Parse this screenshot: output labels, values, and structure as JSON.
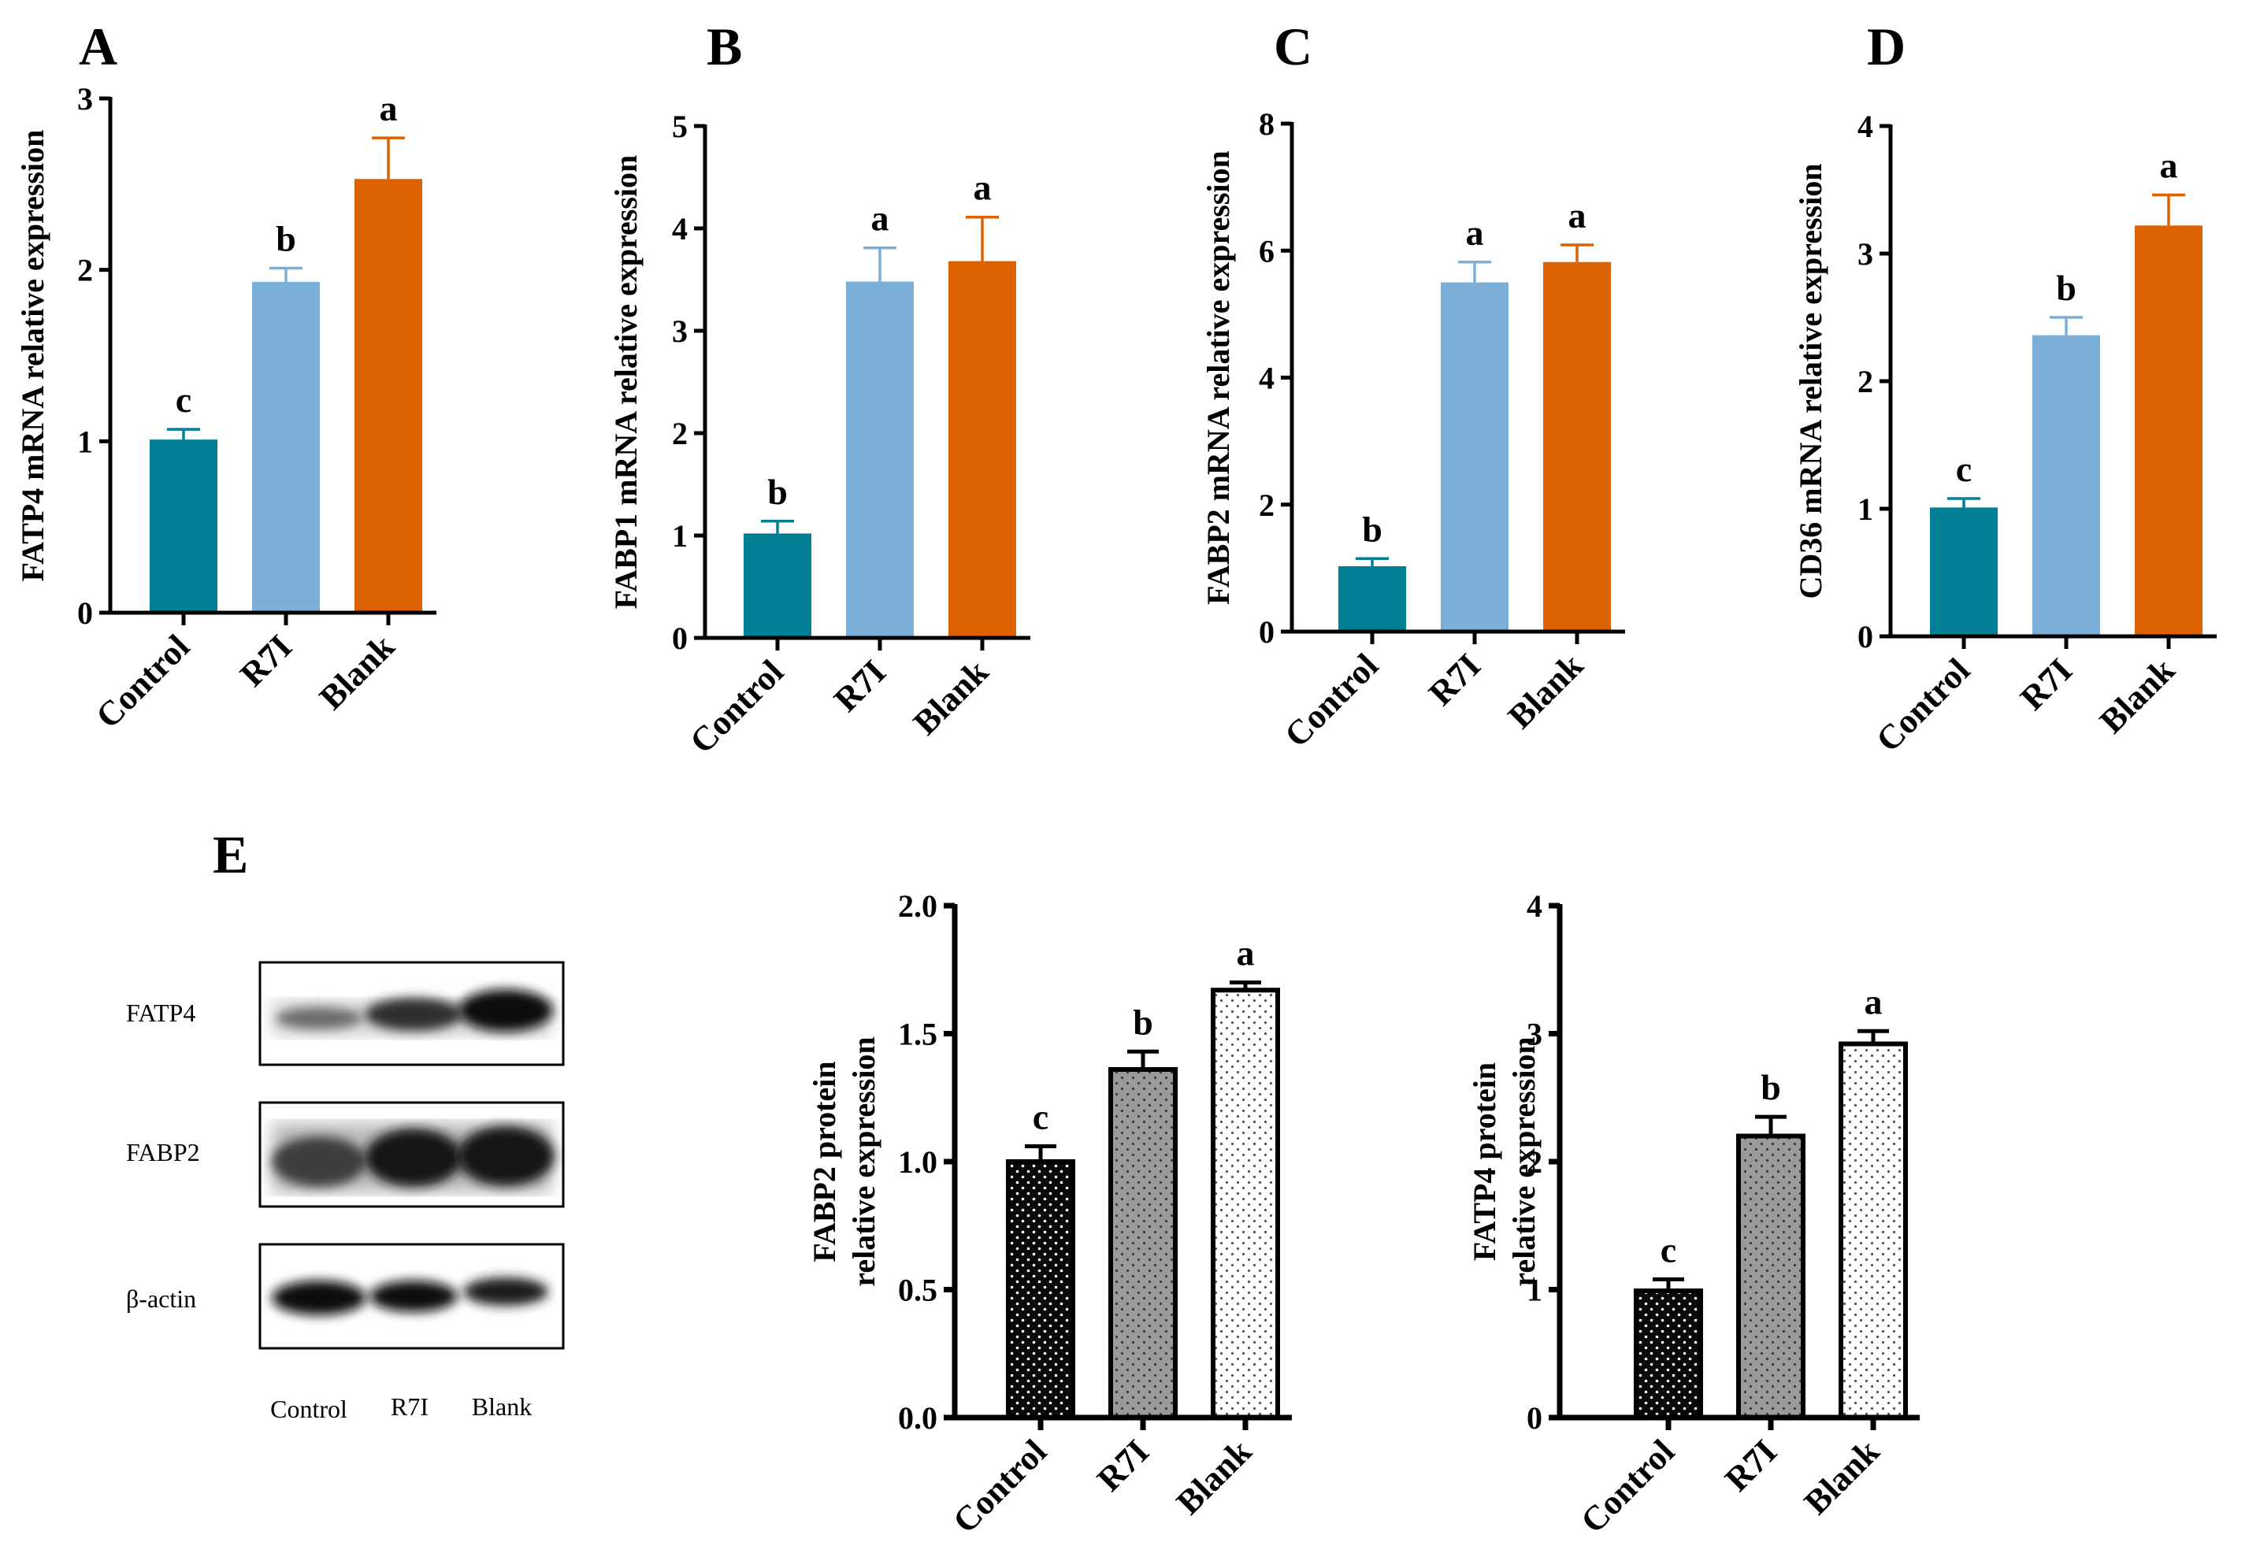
{
  "figure": {
    "blot": {
      "panel_letter": "E",
      "rows": [
        "FATP4",
        "FABP2",
        "β-actin"
      ],
      "lanes": [
        "Control",
        "R7I",
        "Blank"
      ]
    }
  },
  "chart_data": [
    {
      "id": "A",
      "panel_letter": "A",
      "type": "bar",
      "title": "",
      "xlabel": "",
      "ylabel_lines": [
        "FATP4 mRNA relative expression"
      ],
      "categories": [
        "Control",
        "R7I",
        "Blank"
      ],
      "values": [
        1.01,
        1.93,
        2.53
      ],
      "errors": [
        0.06,
        0.08,
        0.24
      ],
      "significance": [
        "c",
        "b",
        "a"
      ],
      "ylim": [
        0,
        3
      ],
      "yticks": [
        0,
        1,
        2,
        3
      ],
      "ytick_labels": [
        "0",
        "1",
        "2",
        "3"
      ],
      "colors": [
        "#007f95",
        "#7bafd7",
        "#dc6101"
      ],
      "fill_style": "solid"
    },
    {
      "id": "B",
      "panel_letter": "B",
      "type": "bar",
      "title": "",
      "xlabel": "",
      "ylabel_lines": [
        "FABP1 mRNA relative expression"
      ],
      "categories": [
        "Control",
        "R7I",
        "Blank"
      ],
      "values": [
        1.02,
        3.48,
        3.68
      ],
      "errors": [
        0.12,
        0.33,
        0.43
      ],
      "significance": [
        "b",
        "a",
        "a"
      ],
      "ylim": [
        0,
        5
      ],
      "yticks": [
        0,
        1,
        2,
        3,
        4,
        5
      ],
      "ytick_labels": [
        "0",
        "1",
        "2",
        "3",
        "4",
        "5"
      ],
      "colors": [
        "#007f95",
        "#7bafd7",
        "#dc6101"
      ],
      "fill_style": "solid"
    },
    {
      "id": "C",
      "panel_letter": "C",
      "type": "bar",
      "title": "",
      "xlabel": "",
      "ylabel_lines": [
        "FABP2 mRNA relative expression"
      ],
      "categories": [
        "Control",
        "R7I",
        "Blank"
      ],
      "values": [
        1.03,
        5.5,
        5.82
      ],
      "errors": [
        0.12,
        0.32,
        0.27
      ],
      "significance": [
        "b",
        "a",
        "a"
      ],
      "ylim": [
        0,
        8
      ],
      "yticks": [
        0,
        2,
        4,
        6,
        8
      ],
      "ytick_labels": [
        "0",
        "2",
        "4",
        "6",
        "8"
      ],
      "colors": [
        "#007f95",
        "#7bafd7",
        "#dc6101"
      ],
      "fill_style": "solid"
    },
    {
      "id": "D",
      "panel_letter": "D",
      "type": "bar",
      "title": "",
      "xlabel": "",
      "ylabel_lines": [
        "CD36 mRNA relative expression"
      ],
      "categories": [
        "Control",
        "R7I",
        "Blank"
      ],
      "values": [
        1.01,
        2.36,
        3.22
      ],
      "errors": [
        0.07,
        0.14,
        0.24
      ],
      "significance": [
        "c",
        "b",
        "a"
      ],
      "ylim": [
        0,
        4
      ],
      "yticks": [
        0,
        1,
        2,
        3,
        4
      ],
      "ytick_labels": [
        "0",
        "1",
        "2",
        "3",
        "4"
      ],
      "colors": [
        "#007f95",
        "#7bafd7",
        "#dc6101"
      ],
      "fill_style": "solid"
    },
    {
      "id": "E1",
      "panel_letter": "",
      "type": "bar",
      "title": "",
      "xlabel": "",
      "ylabel_lines": [
        "FABP2 protein",
        "relative expression"
      ],
      "categories": [
        "Control",
        "R7I",
        "Blank"
      ],
      "values": [
        1.0,
        1.36,
        1.67
      ],
      "errors": [
        0.06,
        0.07,
        0.03
      ],
      "significance": [
        "c",
        "b",
        "a"
      ],
      "ylim": [
        0,
        2
      ],
      "yticks": [
        0,
        0.5,
        1,
        1.5,
        2
      ],
      "ytick_labels": [
        "0.0",
        "0.5",
        "1.0",
        "1.5",
        "2.0"
      ],
      "colors": [
        "#000000",
        "#9a9a9a",
        "#ffffff"
      ],
      "fill_style": "dotted"
    },
    {
      "id": "E2",
      "panel_letter": "",
      "type": "bar",
      "title": "",
      "xlabel": "",
      "ylabel_lines": [
        "FATP4 protein",
        "relative expression"
      ],
      "categories": [
        "Control",
        "R7I",
        "Blank"
      ],
      "values": [
        0.99,
        2.2,
        2.92
      ],
      "errors": [
        0.09,
        0.15,
        0.1
      ],
      "significance": [
        "c",
        "b",
        "a"
      ],
      "ylim": [
        0,
        4
      ],
      "yticks": [
        0,
        1,
        2,
        3,
        4
      ],
      "ytick_labels": [
        "0",
        "1",
        "2",
        "3",
        "4"
      ],
      "colors": [
        "#000000",
        "#9a9a9a",
        "#ffffff"
      ],
      "fill_style": "dotted"
    }
  ]
}
